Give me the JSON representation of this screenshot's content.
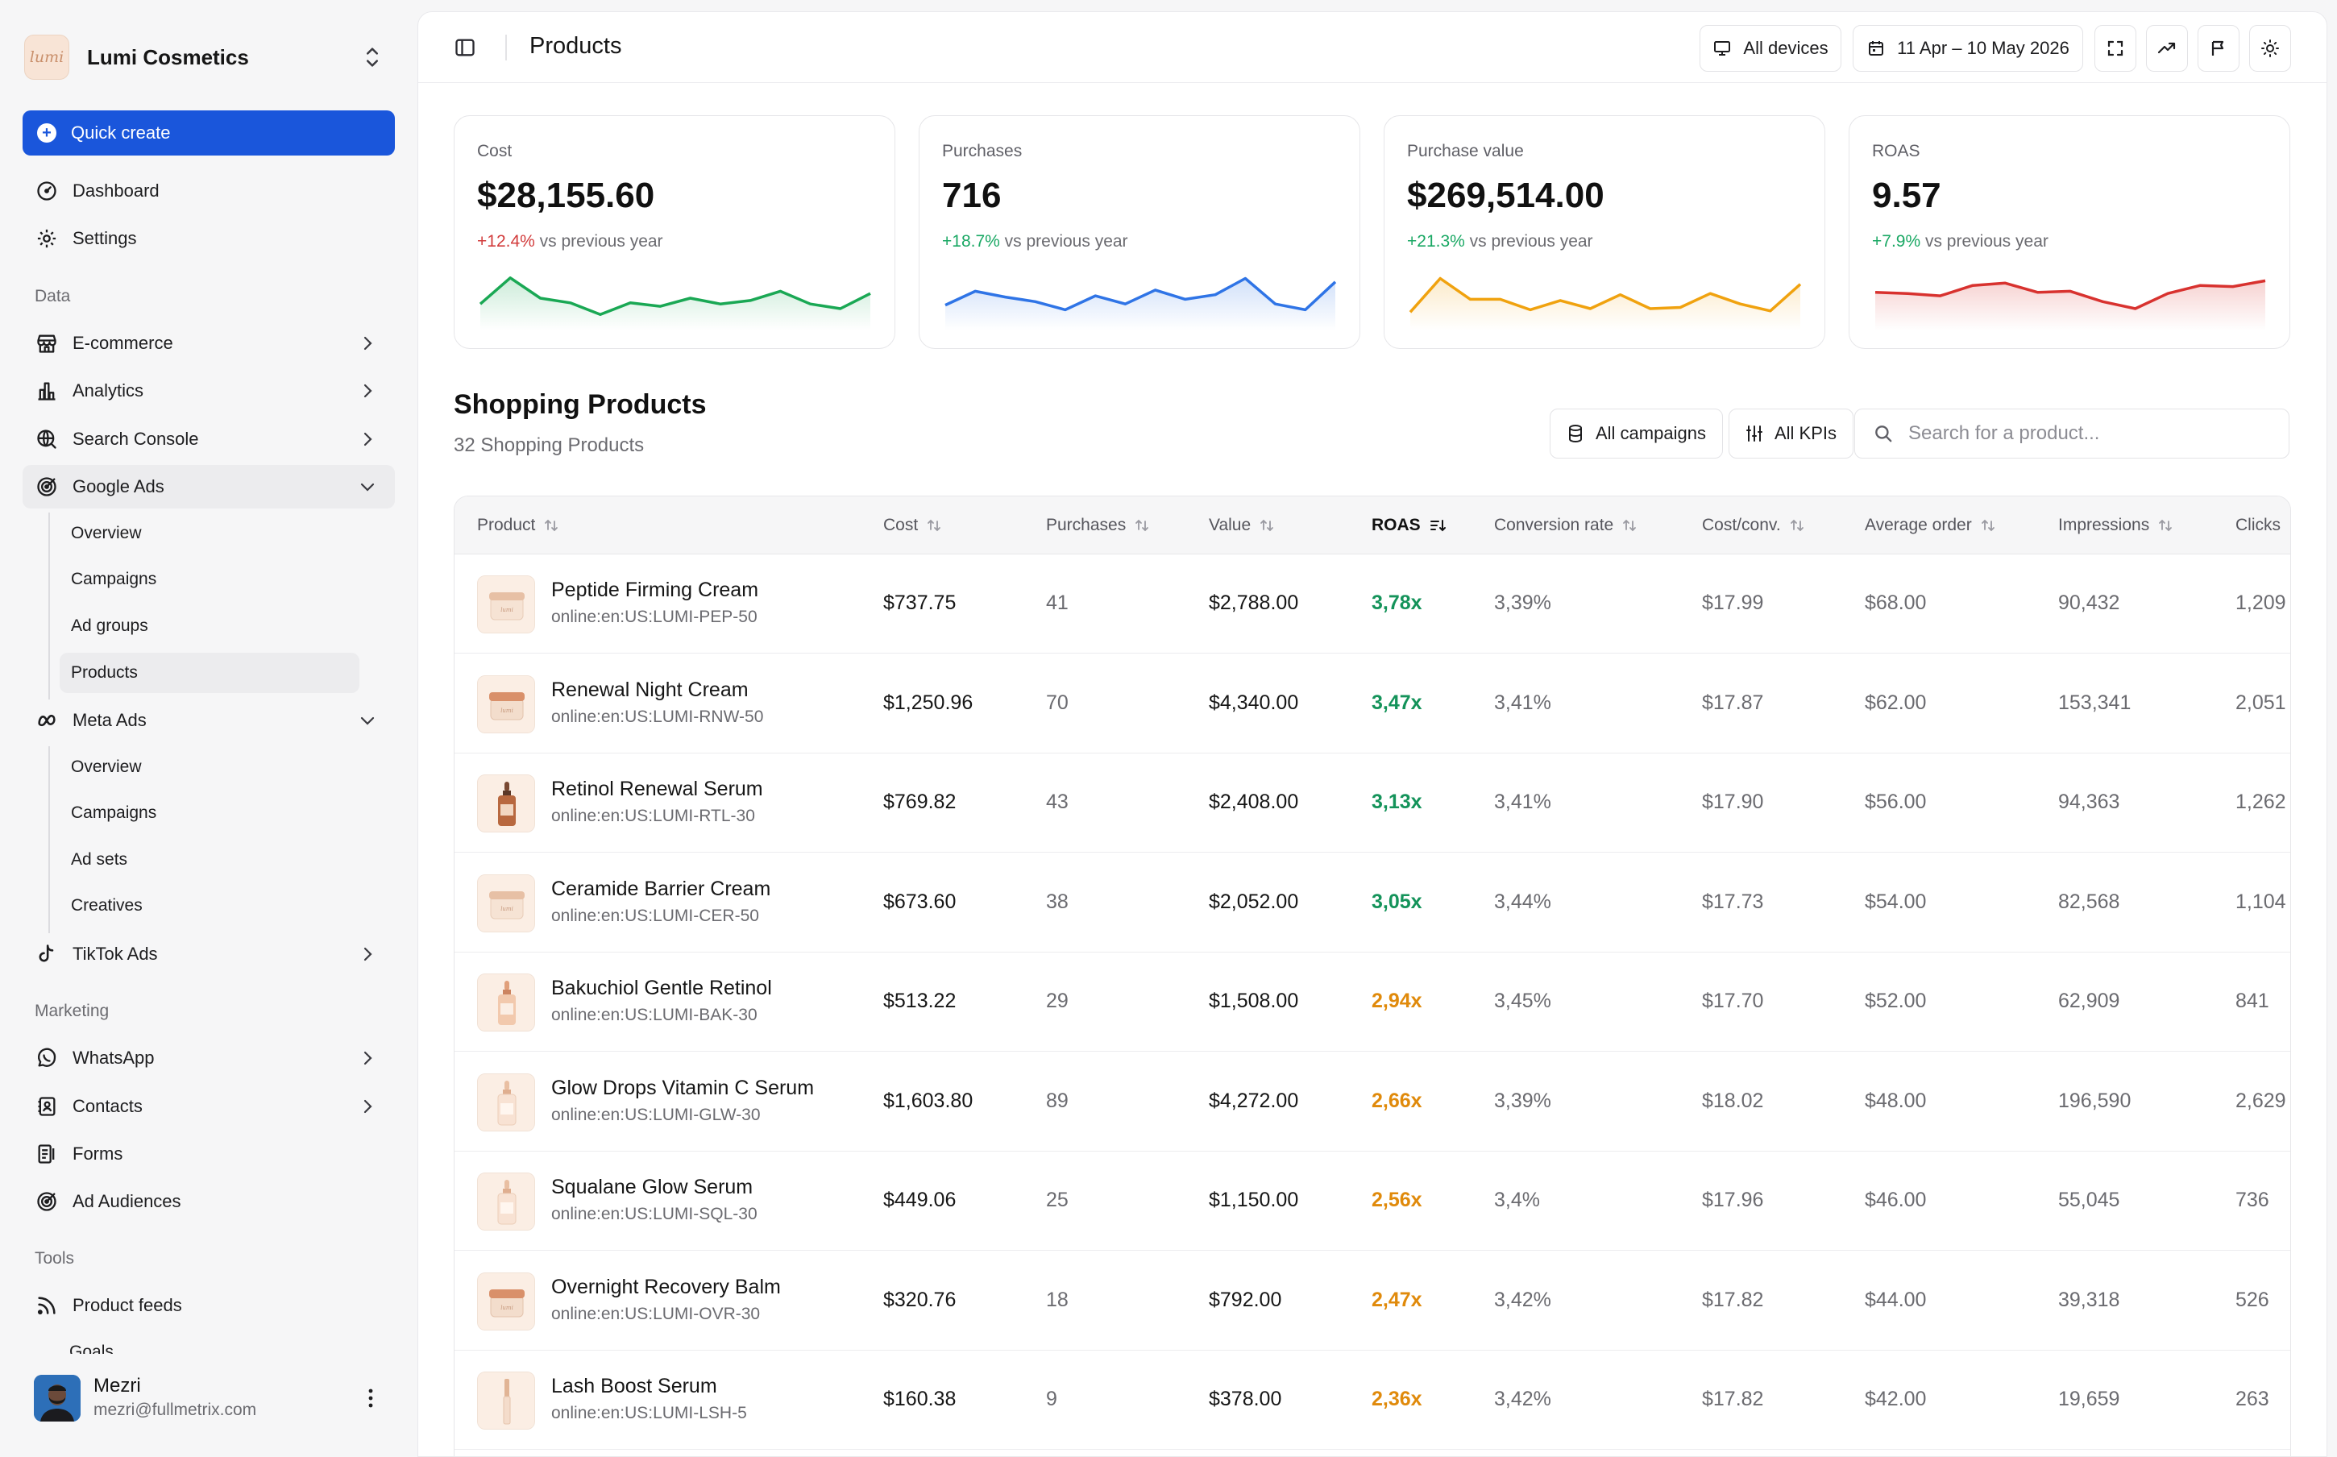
{
  "brand": {
    "name": "Lumi Cosmetics",
    "logo_text": "lumi"
  },
  "quick_create": "Quick create",
  "nav": {
    "dashboard": "Dashboard",
    "settings": "Settings",
    "section_data": "Data",
    "ecommerce": "E-commerce",
    "analytics": "Analytics",
    "search_console": "Search Console",
    "google_ads": "Google Ads",
    "google_sub": [
      "Overview",
      "Campaigns",
      "Ad groups",
      "Products"
    ],
    "meta_ads": "Meta Ads",
    "meta_sub": [
      "Overview",
      "Campaigns",
      "Ad sets",
      "Creatives"
    ],
    "tiktok_ads": "TikTok Ads",
    "section_marketing": "Marketing",
    "whatsapp": "WhatsApp",
    "contacts": "Contacts",
    "forms": "Forms",
    "ad_audiences": "Ad Audiences",
    "section_tools": "Tools",
    "product_feeds": "Product feeds",
    "goals_peek": "Goals"
  },
  "user": {
    "name": "Mezri",
    "email": "mezri@fullmetrix.com"
  },
  "topbar": {
    "title": "Products",
    "devices": "All devices",
    "date_range": "11 Apr – 10 May 2026"
  },
  "colors": {
    "accent": "#1a56db",
    "green": "#14935a",
    "orange": "#e08a0b",
    "red": "#d23c3c",
    "blue": "#2f74e6"
  },
  "kpis": [
    {
      "label": "Cost",
      "value": "$28,155.60",
      "change": "+12.4%",
      "change_note": " vs previous year",
      "trend": "neg",
      "color": "#1aa854",
      "series": [
        40,
        85,
        50,
        42,
        22,
        42,
        36,
        50,
        40,
        46,
        62,
        40,
        32,
        58
      ]
    },
    {
      "label": "Purchases",
      "value": "716",
      "change": "+18.7%",
      "change_note": " vs previous year",
      "trend": "pos",
      "color": "#2f74e6",
      "series": [
        38,
        62,
        52,
        44,
        30,
        54,
        40,
        64,
        48,
        56,
        84,
        40,
        30,
        78
      ]
    },
    {
      "label": "Purchase value",
      "value": "$269,514.00",
      "change": "+21.3%",
      "change_note": " vs previous year",
      "trend": "pos",
      "color": "#f0a20f",
      "series": [
        26,
        84,
        48,
        48,
        30,
        46,
        32,
        56,
        32,
        34,
        58,
        40,
        28,
        74
      ]
    },
    {
      "label": "ROAS",
      "value": "9.57",
      "change": "+7.9%",
      "change_note": " vs previous year",
      "trend": "pos",
      "color": "#d8322f",
      "series": [
        60,
        58,
        54,
        72,
        76,
        60,
        62,
        44,
        32,
        58,
        72,
        70,
        80
      ]
    }
  ],
  "section": {
    "title": "Shopping Products",
    "subtitle": "32 Shopping Products"
  },
  "filters": {
    "campaigns": "All campaigns",
    "kpis": "All KPIs",
    "search_placeholder": "Search for a product..."
  },
  "table": {
    "columns": [
      "Product",
      "Cost",
      "Purchases",
      "Value",
      "ROAS",
      "Conversion rate",
      "Cost/conv.",
      "Average order",
      "Impressions",
      "Clicks"
    ],
    "rows": [
      {
        "name": "Peptide Firming Cream",
        "sku": "online:en:US:LUMI-PEP-50",
        "cost": "$737.75",
        "purchases": "41",
        "value": "$2,788.00",
        "roas": "3,78x",
        "roas_level": "good",
        "conv": "3,39%",
        "cpc": "$17.99",
        "aov": "$68.00",
        "impr": "90,432",
        "clicks": "1,209",
        "kind": "jar"
      },
      {
        "name": "Renewal Night Cream",
        "sku": "online:en:US:LUMI-RNW-50",
        "cost": "$1,250.96",
        "purchases": "70",
        "value": "$4,340.00",
        "roas": "3,47x",
        "roas_level": "good",
        "conv": "3,41%",
        "cpc": "$17.87",
        "aov": "$62.00",
        "impr": "153,341",
        "clicks": "2,051",
        "kind": "jar2"
      },
      {
        "name": "Retinol Renewal Serum",
        "sku": "online:en:US:LUMI-RTL-30",
        "cost": "$769.82",
        "purchases": "43",
        "value": "$2,408.00",
        "roas": "3,13x",
        "roas_level": "good",
        "conv": "3,41%",
        "cpc": "$17.90",
        "aov": "$56.00",
        "impr": "94,363",
        "clicks": "1,262",
        "kind": "dropper"
      },
      {
        "name": "Ceramide Barrier Cream",
        "sku": "online:en:US:LUMI-CER-50",
        "cost": "$673.60",
        "purchases": "38",
        "value": "$2,052.00",
        "roas": "3,05x",
        "roas_level": "good",
        "conv": "3,44%",
        "cpc": "$17.73",
        "aov": "$54.00",
        "impr": "82,568",
        "clicks": "1,104",
        "kind": "jar"
      },
      {
        "name": "Bakuchiol Gentle Retinol",
        "sku": "online:en:US:LUMI-BAK-30",
        "cost": "$513.22",
        "purchases": "29",
        "value": "$1,508.00",
        "roas": "2,94x",
        "roas_level": "ok",
        "conv": "3,45%",
        "cpc": "$17.70",
        "aov": "$52.00",
        "impr": "62,909",
        "clicks": "841",
        "kind": "dropper2"
      },
      {
        "name": "Glow Drops Vitamin C Serum",
        "sku": "online:en:US:LUMI-GLW-30",
        "cost": "$1,603.80",
        "purchases": "89",
        "value": "$4,272.00",
        "roas": "2,66x",
        "roas_level": "ok",
        "conv": "3,39%",
        "cpc": "$18.02",
        "aov": "$48.00",
        "impr": "196,590",
        "clicks": "2,629",
        "kind": "dropper3"
      },
      {
        "name": "Squalane Glow Serum",
        "sku": "online:en:US:LUMI-SQL-30",
        "cost": "$449.06",
        "purchases": "25",
        "value": "$1,150.00",
        "roas": "2,56x",
        "roas_level": "ok",
        "conv": "3,4%",
        "cpc": "$17.96",
        "aov": "$46.00",
        "impr": "55,045",
        "clicks": "736",
        "kind": "dropper3"
      },
      {
        "name": "Overnight Recovery Balm",
        "sku": "online:en:US:LUMI-OVR-30",
        "cost": "$320.76",
        "purchases": "18",
        "value": "$792.00",
        "roas": "2,47x",
        "roas_level": "ok",
        "conv": "3,42%",
        "cpc": "$17.82",
        "aov": "$44.00",
        "impr": "39,318",
        "clicks": "526",
        "kind": "jar2"
      },
      {
        "name": "Lash Boost Serum",
        "sku": "online:en:US:LUMI-LSH-5",
        "cost": "$160.38",
        "purchases": "9",
        "value": "$378.00",
        "roas": "2,36x",
        "roas_level": "ok",
        "conv": "3,42%",
        "cpc": "$17.82",
        "aov": "$42.00",
        "impr": "19,659",
        "clicks": "263",
        "kind": "wand"
      }
    ]
  }
}
